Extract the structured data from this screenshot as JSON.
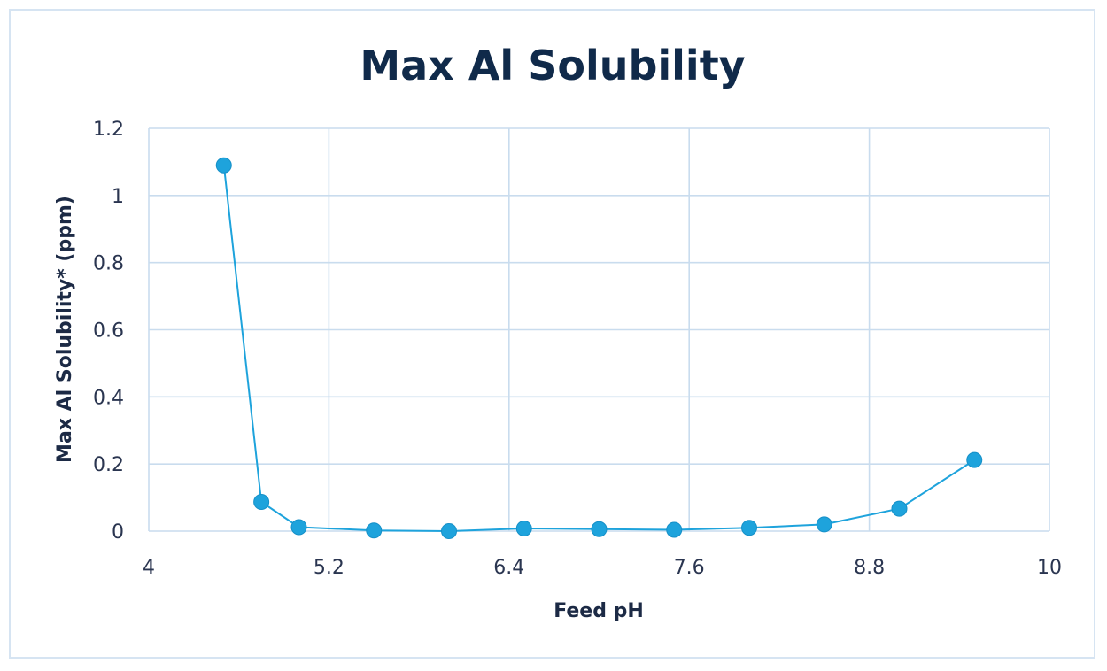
{
  "chart_data": {
    "type": "scatter",
    "title": "Max Al Solubility",
    "xlabel": "Feed pH",
    "ylabel": "Max Al Solubility* (ppm)",
    "xlim": [
      4,
      10
    ],
    "ylim": [
      0,
      1.2
    ],
    "x_ticks": [
      "4",
      "5.2",
      "6.4",
      "7.6",
      "8.8",
      "10"
    ],
    "x_tick_values": [
      4,
      5.2,
      6.4,
      7.6,
      8.8,
      10
    ],
    "y_ticks": [
      "0",
      "0.2",
      "0.4",
      "0.6",
      "0.8",
      "1",
      "1.2"
    ],
    "y_tick_values": [
      0,
      0.2,
      0.4,
      0.6,
      0.8,
      1.0,
      1.2
    ],
    "grid": true,
    "legend": "none",
    "colors": {
      "series": "#1ea3dc",
      "grid": "#c9dcee",
      "title": "#102a4a"
    },
    "series": [
      {
        "x": [
          4.5,
          4.75,
          5.0,
          5.5,
          6.0,
          6.5,
          7.0,
          7.5,
          8.0,
          8.5,
          9.0,
          9.5
        ],
        "y": [
          1.09,
          0.087,
          0.012,
          0.002,
          0.0,
          0.008,
          0.006,
          0.004,
          0.01,
          0.02,
          0.067,
          0.212
        ]
      }
    ]
  }
}
